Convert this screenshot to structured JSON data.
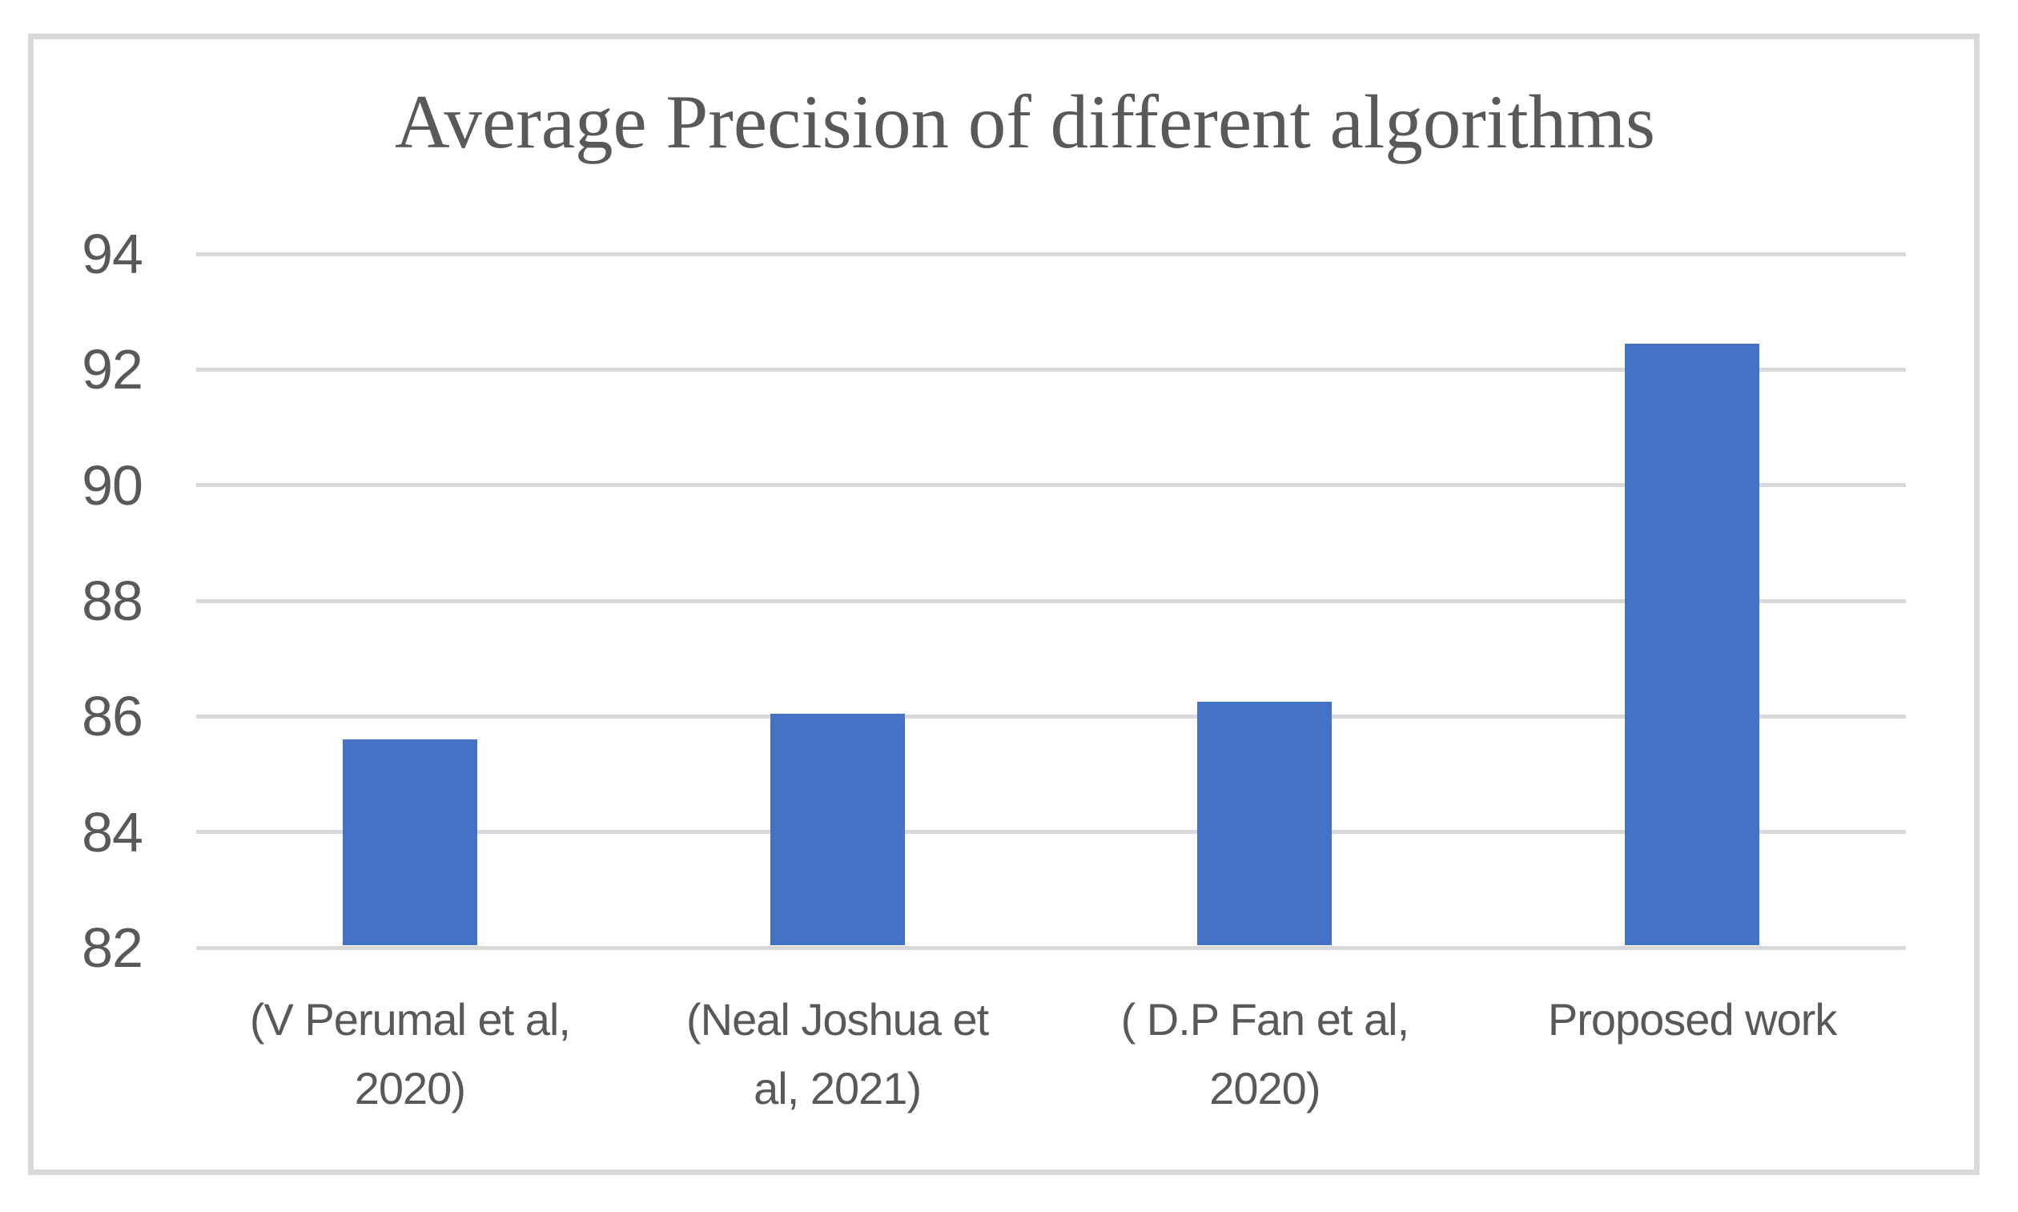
{
  "chart_data": {
    "type": "bar",
    "title": "Average Precision of different algorithms",
    "categories": [
      "(V Perumal et al,\n2020)",
      "(Neal Joshua et\nal, 2021)",
      "( D.P Fan et al,\n2020)",
      "Proposed work"
    ],
    "values": [
      85.6,
      86.05,
      86.25,
      92.45
    ],
    "xlabel": "",
    "ylabel": "",
    "ylim": [
      82,
      94
    ],
    "yticks": [
      82,
      84,
      86,
      88,
      90,
      92,
      94
    ],
    "grid": "horizontal-only",
    "legend": "none",
    "colors": {
      "bar": "#4472C4",
      "gridline": "#D9D9D9",
      "frame_border": "#D9D9D9",
      "text": "#595959",
      "background": "#FFFFFF"
    }
  }
}
